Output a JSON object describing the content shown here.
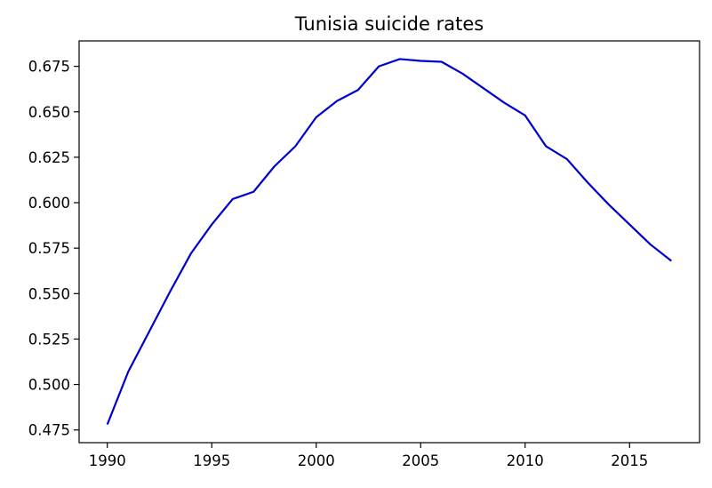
{
  "chart_data": {
    "type": "line",
    "title": "Tunisia suicide rates",
    "xlabel": "",
    "ylabel": "",
    "xlim": [
      1988.65,
      2018.35
    ],
    "ylim": [
      0.468,
      0.689
    ],
    "grid": false,
    "line_color": "#0000cc",
    "x_ticks": [
      1990,
      1995,
      2000,
      2005,
      2010,
      2015
    ],
    "y_ticks": [
      0.475,
      0.5,
      0.525,
      0.55,
      0.575,
      0.6,
      0.625,
      0.65,
      0.675
    ],
    "x_tick_labels": [
      "1990",
      "1995",
      "2000",
      "2005",
      "2010",
      "2015"
    ],
    "y_tick_labels": [
      "0.475",
      "0.500",
      "0.525",
      "0.550",
      "0.575",
      "0.600",
      "0.625",
      "0.650",
      "0.675"
    ],
    "series": [
      {
        "x": [
          1990,
          1991,
          1992,
          1993,
          1994,
          1995,
          1996,
          1997,
          1998,
          1999,
          2000,
          2001,
          2002,
          2003,
          2004,
          2005,
          2006,
          2007,
          2008,
          2009,
          2010,
          2011,
          2012,
          2013,
          2014,
          2015,
          2016,
          2017
        ],
        "values": [
          0.478,
          0.507,
          0.529,
          0.551,
          0.572,
          0.588,
          0.602,
          0.606,
          0.62,
          0.631,
          0.647,
          0.656,
          0.662,
          0.675,
          0.679,
          0.678,
          0.6775,
          0.671,
          0.663,
          0.655,
          0.648,
          0.631,
          0.624,
          0.611,
          0.599,
          0.588,
          0.577,
          0.568
        ]
      }
    ]
  }
}
